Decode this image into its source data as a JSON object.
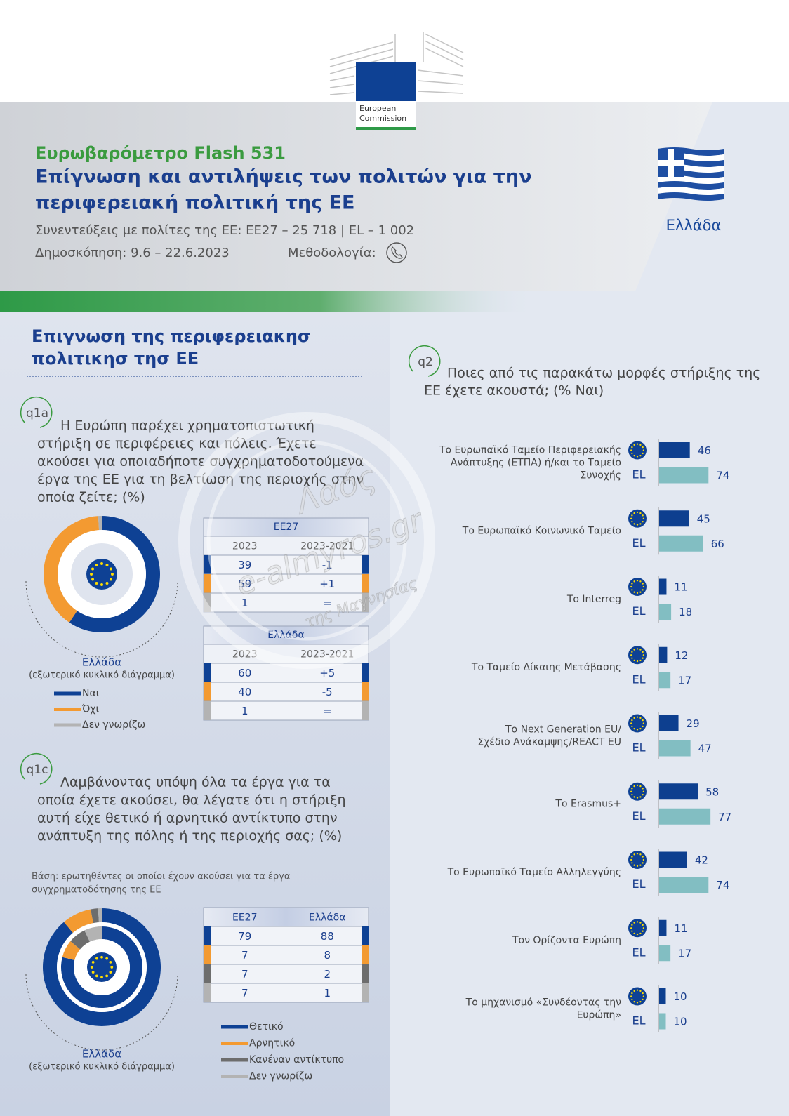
{
  "header": {
    "logo": [
      "European",
      "Commission"
    ],
    "survey": "Ευρωβαρόμετρο Flash 531",
    "title": [
      "Επίγνωση και αντιλήψεις των πολιτών για την",
      "περιφερειακή πολιτική της ΕΕ"
    ],
    "interviews": "Συνεντεύξεις με πολίτες της ΕΕ: ΕΕ27 – 25 718 | EL – 1 002",
    "fieldwork": "Δημοσκόπηση: 9.6 – 22.6.2023",
    "methodology": "Μεθοδολογία:",
    "country": "Ελλάδα"
  },
  "section_title": [
    "Επιγνωση της περιφερειακησ",
    "πολιτικησ τησ ΕΕ"
  ],
  "q1a": {
    "tag": "q1a",
    "question": [
      "Η Ευρώπη παρέχει χρηματοπιστωτική",
      "στήριξη σε περιφέρειες και πόλεις. Έχετε",
      "ακούσει για οποιαδήποτε συγχρηματοδοτούμενα",
      "έργα της ΕΕ για τη βελτίωση της περιοχής στην",
      "οποία ζείτε; (%)"
    ],
    "colors": [
      "#0e4194",
      "#f39a31",
      "#b3b3b3"
    ],
    "tables": [
      {
        "title": "ΕΕ27",
        "columns": [
          "2023",
          "2023-2021"
        ],
        "rows": [
          [
            39,
            "-1"
          ],
          [
            59,
            "+1"
          ],
          [
            1,
            "="
          ]
        ]
      },
      {
        "title": "Ελλάδα",
        "columns": [
          "2023",
          "2023-2021"
        ],
        "rows": [
          [
            60,
            "+5"
          ],
          [
            40,
            "-5"
          ],
          [
            1,
            "="
          ]
        ]
      }
    ],
    "caption": [
      "Ελλάδα",
      "(εξωτερικό κυκλικό διάγραμμα)"
    ],
    "legend": [
      "Ναι",
      "Όχι",
      "Δεν γνωρίζω"
    ]
  },
  "q1c": {
    "tag": "q1c",
    "question": [
      "Λαμβάνοντας υπόψη όλα τα έργα για τα",
      "οποία έχετε ακούσει, θα λέγατε ότι η στήριξη",
      "αυτή είχε θετικό ή αρνητικό αντίκτυπο στην",
      "ανάπτυξη της πόλης ή της περιοχής σας; (%)"
    ],
    "base": [
      "Βάση: ερωτηθέντες οι οποίοι έχουν ακούσει για τα έργα",
      "συγχρηματοδότησης της ΕΕ"
    ],
    "colors": [
      "#0e4194",
      "#f39a31",
      "#6d6d6d",
      "#b3b3b3"
    ],
    "table": {
      "columns": [
        "ΕΕ27",
        "Ελλάδα"
      ],
      "rows": [
        [
          79,
          88
        ],
        [
          7,
          8
        ],
        [
          7,
          2
        ],
        [
          7,
          1
        ]
      ]
    },
    "caption": [
      "Ελλάδα",
      "(εξωτερικό κυκλικό διάγραμμα)"
    ],
    "legend": [
      "Θετικό",
      "Αρνητικό",
      "Κανέναν αντίκτυπο",
      "Δεν γνωρίζω"
    ]
  },
  "q2": {
    "tag": "q2",
    "question": [
      "Ποιες από τις παρακάτω μορφές στήριξης της",
      "ΕΕ έχετε ακουστά; (% Ναι)"
    ],
    "el_label": "EL",
    "colors": {
      "eu": "#0d3f8f",
      "el": "#82bec2"
    },
    "items": [
      {
        "label": [
          "Το Ευρωπαϊκό Ταμείο Περιφερειακής",
          "Ανάπτυξης (ΕΤΠΑ) ή/και το Ταμείο",
          "Συνοχής"
        ],
        "eu": 46,
        "el": 74
      },
      {
        "label": [
          "Το Ευρωπαϊκό Κοινωνικό Ταμείο"
        ],
        "eu": 45,
        "el": 66
      },
      {
        "label": [
          "Το Interreg"
        ],
        "eu": 11,
        "el": 18
      },
      {
        "label": [
          "Το Ταμείο Δίκαιης Μετάβασης"
        ],
        "eu": 12,
        "el": 17
      },
      {
        "label": [
          "Το Next Generation EU/",
          "Σχέδιο Ανάκαμψης/REACT EU"
        ],
        "eu": 29,
        "el": 47
      },
      {
        "label": [
          "Το Erasmus+"
        ],
        "eu": 58,
        "el": 77
      },
      {
        "label": [
          "Το Ευρωπαϊκό Ταμείο Αλληλεγγύης"
        ],
        "eu": 42,
        "el": 74
      },
      {
        "label": [
          "Τον Ορίζοντα Ευρώπη"
        ],
        "eu": 11,
        "el": 17
      },
      {
        "label": [
          "Το μηχανισμό «Συνδέοντας την",
          "Ευρώπη»"
        ],
        "eu": 10,
        "el": 10
      }
    ]
  },
  "watermark": [
    "Λαός",
    "e-almyros.gr",
    "της Μαγνησίας"
  ]
}
